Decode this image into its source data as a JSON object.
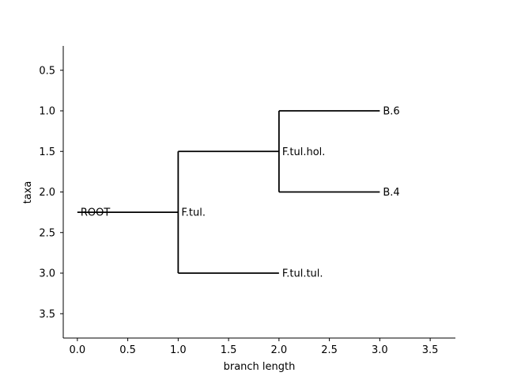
{
  "chart_data": {
    "type": "tree",
    "title": "",
    "xlabel": "branch length",
    "ylabel": "taxa",
    "xlim": [
      -0.14,
      3.75
    ],
    "ylim": [
      3.8,
      0.2
    ],
    "y_inverted": true,
    "xticks": [
      0.0,
      0.5,
      1.0,
      1.5,
      2.0,
      2.5,
      3.0,
      3.5
    ],
    "xtick_labels": [
      "0.0",
      "0.5",
      "1.0",
      "1.5",
      "2.0",
      "2.5",
      "3.0",
      "3.5"
    ],
    "yticks": [
      0.5,
      1.0,
      1.5,
      2.0,
      2.5,
      3.0,
      3.5
    ],
    "ytick_labels": [
      "0.5",
      "1.0",
      "1.5",
      "2.0",
      "2.5",
      "3.0",
      "3.5"
    ],
    "grid": false,
    "spines": [
      "left",
      "bottom"
    ],
    "nodes": [
      {
        "id": "root",
        "label": "ROOT",
        "x": 0.0,
        "y": 2.25,
        "parent": null
      },
      {
        "id": "ftul",
        "label": "F.tul.",
        "x": 1.0,
        "y": 2.25,
        "parent": "root"
      },
      {
        "id": "ftulhol",
        "label": "F.tul.hol.",
        "x": 2.0,
        "y": 1.5,
        "parent": "ftul"
      },
      {
        "id": "ftultul",
        "label": "F.tul.tul.",
        "x": 2.0,
        "y": 3.0,
        "parent": "ftul"
      },
      {
        "id": "b6",
        "label": "B.6",
        "x": 3.0,
        "y": 1.0,
        "parent": "ftulhol"
      },
      {
        "id": "b4",
        "label": "B.4",
        "x": 3.0,
        "y": 2.0,
        "parent": "ftulhol"
      }
    ],
    "children": {
      "ftul": [
        "ftulhol",
        "ftultul"
      ],
      "ftulhol": [
        "b6",
        "b4"
      ]
    },
    "branch_color": "#000000"
  }
}
